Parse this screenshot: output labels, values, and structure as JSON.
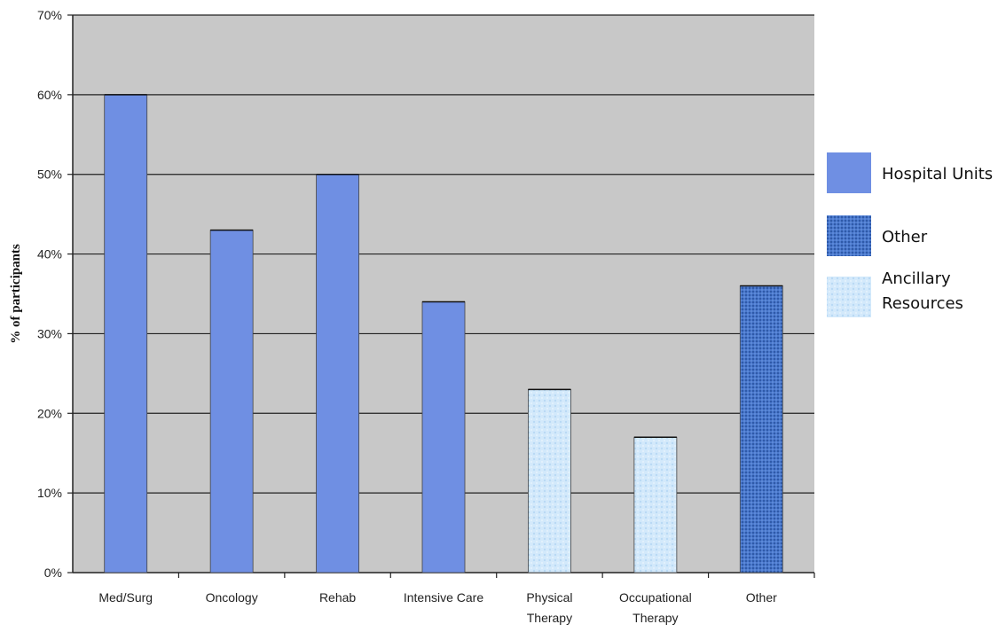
{
  "chart_data": {
    "type": "bar",
    "title": "",
    "xlabel": "",
    "ylabel": "% of participants",
    "ylim": [
      0,
      70
    ],
    "yticks": [
      0,
      10,
      20,
      30,
      40,
      50,
      60,
      70
    ],
    "ytick_labels": [
      "0%",
      "10%",
      "20%",
      "30%",
      "40%",
      "50%",
      "60%",
      "70%"
    ],
    "grid": true,
    "legend_position": "right",
    "categories": [
      [
        "Med/Surg"
      ],
      [
        "Oncology"
      ],
      [
        "Rehab"
      ],
      [
        "Intensive Care"
      ],
      [
        "Physical",
        "Therapy"
      ],
      [
        "Occupational",
        "Therapy"
      ],
      [
        "Other"
      ]
    ],
    "values": [
      60,
      43,
      50,
      34,
      23,
      17,
      36
    ],
    "bar_groups": [
      "hospital",
      "hospital",
      "hospital",
      "hospital",
      "ancillary",
      "ancillary",
      "other"
    ],
    "legend": [
      {
        "key": "hospital",
        "lines": [
          "Hospital Units"
        ],
        "color": "#6f8fe3"
      },
      {
        "key": "other",
        "lines": [
          "Other"
        ],
        "color": "#3f6ec4"
      },
      {
        "key": "ancillary",
        "lines": [
          "Ancillary",
          "Resources"
        ],
        "color": "#cde6fa"
      }
    ],
    "colors": {
      "plot_background": "#c8c8c8",
      "gridline": "#222222",
      "hospital": "#6f8fe3",
      "other": "#3f6ec4",
      "ancillary": "#cde6fa"
    }
  }
}
